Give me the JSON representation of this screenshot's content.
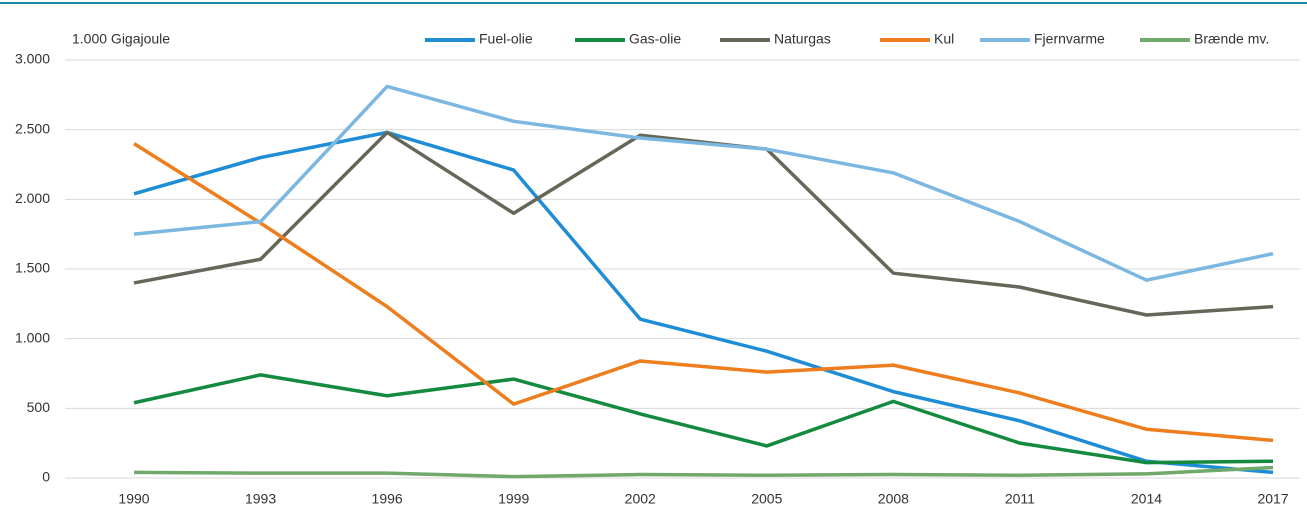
{
  "chart_data": {
    "type": "line",
    "unit_label": "1.000 Gigajoule",
    "categories": [
      "1990",
      "1993",
      "1996",
      "1999",
      "2002",
      "2005",
      "2008",
      "2011",
      "2014",
      "2017"
    ],
    "series": [
      {
        "name": "Fuel-olie",
        "color": "#1f8dd6",
        "values": [
          2040,
          2300,
          2480,
          2210,
          1140,
          910,
          620,
          410,
          120,
          40
        ]
      },
      {
        "name": "Gas-olie",
        "color": "#148a3e",
        "values": [
          540,
          740,
          590,
          710,
          460,
          230,
          550,
          250,
          110,
          120
        ]
      },
      {
        "name": "Naturgas",
        "color": "#676759",
        "values": [
          1400,
          1570,
          2480,
          1900,
          2460,
          2360,
          1470,
          1370,
          1170,
          1230
        ]
      },
      {
        "name": "Kul",
        "color": "#ee7d1e",
        "values": [
          2400,
          1830,
          1230,
          530,
          840,
          760,
          810,
          610,
          350,
          270
        ]
      },
      {
        "name": "Fjernvarme",
        "color": "#7cb7e2",
        "values": [
          1750,
          1840,
          2810,
          2560,
          2440,
          2360,
          2190,
          1840,
          1420,
          1610
        ]
      },
      {
        "name": "Brænde mv.",
        "color": "#70a96a",
        "values": [
          40,
          35,
          35,
          10,
          25,
          20,
          25,
          20,
          30,
          75
        ]
      }
    ],
    "ylim": [
      0,
      3000
    ],
    "yticks": [
      0,
      500,
      {
        "value": 1000,
        "label": "1.000"
      },
      {
        "value": 1500,
        "label": "1.500"
      },
      {
        "value": 2000,
        "label": "2.000"
      },
      {
        "value": 2500,
        "label": "2.500"
      },
      {
        "value": 3000,
        "label": "3.000"
      }
    ],
    "grid": true
  }
}
